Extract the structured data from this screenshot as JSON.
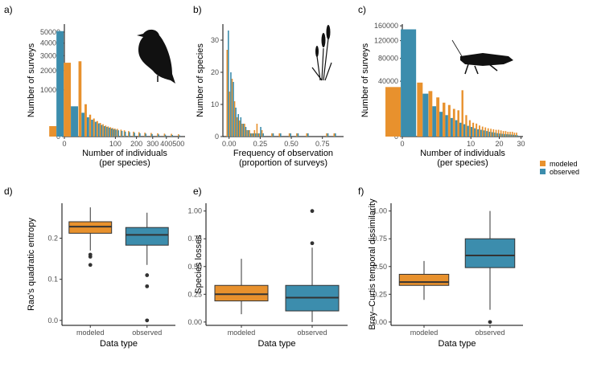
{
  "colors": {
    "modeled": "#E8912D",
    "observed": "#3C8DAD",
    "median": "#333333",
    "axis": "#000000"
  },
  "legend": {
    "items": [
      {
        "label": "modeled",
        "color": "#E8912D"
      },
      {
        "label": "observed",
        "color": "#3C8DAD"
      }
    ]
  },
  "chart_data": [
    {
      "panel": "a)",
      "type": "bar",
      "icon": "bird-silhouette-icon",
      "xlabel": [
        "Number of individuals",
        "(per species)"
      ],
      "ylabel": "Number of surveys",
      "xscale": "sqrt",
      "yscale": "sqrt",
      "xlim": [
        0,
        560
      ],
      "ylim": [
        0,
        58000
      ],
      "xticks": [
        {
          "v": 0,
          "t": "0"
        },
        {
          "v": 100,
          "t": "100"
        },
        {
          "v": 200,
          "t": "200"
        },
        {
          "v": 300,
          "t": "300"
        },
        {
          "v": 400,
          "t": "400"
        },
        {
          "v": 500,
          "t": "500"
        }
      ],
      "yticks": [
        {
          "v": 0,
          "t": "0"
        },
        {
          "v": 10000,
          "t": "10000"
        },
        {
          "v": 20000,
          "t": "20000"
        },
        {
          "v": 30000,
          "t": "30000"
        },
        {
          "v": 40000,
          "t": "40000"
        },
        {
          "v": 50000,
          "t": "50000"
        }
      ],
      "bin_width": 8,
      "series": [
        {
          "name": "modeled",
          "x": [
            -4,
            4,
            12,
            20,
            28,
            36,
            44,
            52,
            60,
            68,
            76,
            84,
            92,
            100,
            110,
            125,
            140,
            160,
            185,
            215,
            250,
            290,
            335,
            385,
            440,
            500
          ],
          "values": [
            500,
            25000,
            26000,
            4800,
            2200,
            1500,
            1100,
            850,
            700,
            560,
            470,
            400,
            340,
            300,
            270,
            220,
            180,
            140,
            110,
            90,
            70,
            60,
            50,
            40,
            35,
            25
          ]
        },
        {
          "name": "observed",
          "x": [
            -4,
            4,
            12,
            20,
            28,
            36,
            44,
            52,
            60,
            68,
            76,
            84,
            92,
            100,
            110,
            125,
            140,
            160,
            185,
            215,
            250,
            290,
            335,
            385,
            440,
            500
          ],
          "values": [
            51000,
            4200,
            2600,
            1700,
            1300,
            1000,
            800,
            620,
            500,
            430,
            360,
            300,
            250,
            220,
            180,
            150,
            110,
            90,
            70,
            50,
            40,
            30,
            22,
            16,
            12,
            8
          ]
        }
      ]
    },
    {
      "panel": "b)",
      "type": "bar",
      "icon": "grass-silhouette-icon",
      "xlabel": [
        "Frequency of observation",
        "(proportion of surveys)"
      ],
      "ylabel": "Number of species",
      "xlim": [
        -0.05,
        0.92
      ],
      "ylim": [
        0,
        35
      ],
      "xticks": [
        {
          "v": 0,
          "t": "0.00"
        },
        {
          "v": 0.25,
          "t": "0.25"
        },
        {
          "v": 0.5,
          "t": "0.50"
        },
        {
          "v": 0.75,
          "t": "0.75"
        }
      ],
      "yticks": [
        {
          "v": 0,
          "t": "0"
        },
        {
          "v": 10,
          "t": "10"
        },
        {
          "v": 20,
          "t": "20"
        },
        {
          "v": 30,
          "t": "30"
        }
      ],
      "bin_width": 0.02,
      "series": [
        {
          "name": "modeled",
          "x": [
            -0.01,
            0.01,
            0.03,
            0.05,
            0.07,
            0.09,
            0.11,
            0.13,
            0.15,
            0.17,
            0.19,
            0.21,
            0.23,
            0.25,
            0.27,
            0.35,
            0.41,
            0.49,
            0.55,
            0.63,
            0.79,
            0.85
          ],
          "values": [
            27,
            14,
            18,
            11,
            6,
            5,
            4,
            4,
            2,
            2,
            1,
            2,
            4,
            1,
            2,
            1,
            1,
            1,
            1,
            1,
            1,
            1
          ]
        },
        {
          "name": "observed",
          "x": [
            -0.01,
            0.01,
            0.03,
            0.05,
            0.07,
            0.09,
            0.11,
            0.13,
            0.15,
            0.17,
            0.19,
            0.21,
            0.23,
            0.25,
            0.27,
            0.35,
            0.41,
            0.49,
            0.55,
            0.63,
            0.79,
            0.85
          ],
          "values": [
            33,
            20,
            17,
            9,
            7,
            6,
            4,
            3,
            2,
            1,
            1,
            1,
            1,
            3,
            1,
            1,
            1,
            1,
            1,
            1,
            1,
            1
          ]
        }
      ]
    },
    {
      "panel": "c)",
      "type": "bar",
      "icon": "grasshopper-silhouette-icon",
      "xlabel": [
        "Number of individuals",
        "(per species)"
      ],
      "ylabel": "Number of surveys",
      "xscale": "sqrt",
      "yscale": "sqrt",
      "xlim": [
        0,
        31
      ],
      "ylim": [
        0,
        165000
      ],
      "xticks": [
        {
          "v": 0,
          "t": "0"
        },
        {
          "v": 10,
          "t": "10"
        },
        {
          "v": 20,
          "t": "20"
        },
        {
          "v": 30,
          "t": "30"
        }
      ],
      "yticks": [
        {
          "v": 0,
          "t": "0"
        },
        {
          "v": 40000,
          "t": "40000"
        },
        {
          "v": 80000,
          "t": "80000"
        },
        {
          "v": 120000,
          "t": "120000"
        },
        {
          "v": 160000,
          "t": "160000"
        }
      ],
      "bin_width": 1,
      "series": [
        {
          "name": "modeled",
          "x": [
            0,
            1,
            2,
            3,
            4,
            5,
            6,
            7,
            8,
            9,
            10,
            11,
            12,
            13,
            14,
            15,
            16,
            17,
            18,
            19,
            20,
            21,
            22,
            23,
            24,
            25,
            26,
            27,
            28
          ],
          "values": [
            32000,
            38000,
            27000,
            20000,
            15000,
            13000,
            10000,
            9000,
            28000,
            6000,
            3500,
            2500,
            2200,
            1600,
            1300,
            1100,
            900,
            800,
            700,
            600,
            600,
            500,
            400,
            400,
            300,
            300,
            300,
            200,
            200
          ]
        },
        {
          "name": "observed",
          "x": [
            0,
            1,
            2,
            3,
            4,
            5,
            6,
            7,
            8,
            9,
            10,
            11,
            12,
            13,
            14,
            15,
            16,
            17,
            18,
            19,
            20,
            21,
            22,
            23,
            24,
            25,
            26,
            27,
            28
          ],
          "values": [
            150000,
            24000,
            12000,
            8000,
            6000,
            4500,
            3500,
            2500,
            2000,
            1500,
            1200,
            900,
            700,
            600,
            500,
            400,
            300,
            250,
            200,
            150,
            120,
            100,
            80,
            70,
            60,
            50,
            40,
            30,
            20
          ]
        }
      ]
    },
    {
      "panel": "d)",
      "type": "box",
      "xlabel": "Data type",
      "ylabel": "Rao's quadratic entropy",
      "categories": [
        "modeled",
        "observed"
      ],
      "ylim": [
        -0.012,
        0.285
      ],
      "yticks": [
        {
          "v": 0,
          "t": "0.0"
        },
        {
          "v": 0.1,
          "t": "0.1"
        },
        {
          "v": 0.2,
          "t": "0.2"
        }
      ],
      "boxes": [
        {
          "name": "modeled",
          "q1": 0.212,
          "median": 0.228,
          "q3": 0.24,
          "whisker_low": 0.17,
          "whisker_high": 0.275,
          "outliers": [
            0.16,
            0.155,
            0.135
          ]
        },
        {
          "name": "observed",
          "q1": 0.183,
          "median": 0.208,
          "q3": 0.226,
          "whisker_low": 0.135,
          "whisker_high": 0.262,
          "outliers": [
            0.11,
            0.083,
            0.0
          ]
        }
      ]
    },
    {
      "panel": "e)",
      "type": "box",
      "xlabel": "Data type",
      "ylabel": "Species losses",
      "categories": [
        "modeled",
        "observed"
      ],
      "ylim": [
        -0.03,
        1.07
      ],
      "yticks": [
        {
          "v": 0,
          "t": "0.00"
        },
        {
          "v": 0.25,
          "t": "0.25"
        },
        {
          "v": 0.5,
          "t": "0.50"
        },
        {
          "v": 0.75,
          "t": "0.75"
        },
        {
          "v": 1.0,
          "t": "1.00"
        }
      ],
      "boxes": [
        {
          "name": "modeled",
          "q1": 0.19,
          "median": 0.25,
          "q3": 0.33,
          "whisker_low": 0.07,
          "whisker_high": 0.57,
          "outliers": []
        },
        {
          "name": "observed",
          "q1": 0.1,
          "median": 0.22,
          "q3": 0.33,
          "whisker_low": 0.0,
          "whisker_high": 0.67,
          "outliers": [
            0.71,
            1.0
          ]
        }
      ]
    },
    {
      "panel": "f)",
      "type": "box",
      "xlabel": "Data type",
      "ylabel": "Bray–Curtis temporal dissimilarity",
      "categories": [
        "modeled",
        "observed"
      ],
      "ylim": [
        -0.03,
        1.07
      ],
      "yticks": [
        {
          "v": 0,
          "t": "0.00"
        },
        {
          "v": 0.25,
          "t": "0.25"
        },
        {
          "v": 0.5,
          "t": "0.50"
        },
        {
          "v": 0.75,
          "t": "0.75"
        },
        {
          "v": 1.0,
          "t": "1.00"
        }
      ],
      "boxes": [
        {
          "name": "modeled",
          "q1": 0.33,
          "median": 0.36,
          "q3": 0.43,
          "whisker_low": 0.2,
          "whisker_high": 0.55,
          "outliers": []
        },
        {
          "name": "observed",
          "q1": 0.49,
          "median": 0.6,
          "q3": 0.75,
          "whisker_low": 0.11,
          "whisker_high": 1.0,
          "outliers": [
            0.0
          ]
        }
      ]
    }
  ]
}
